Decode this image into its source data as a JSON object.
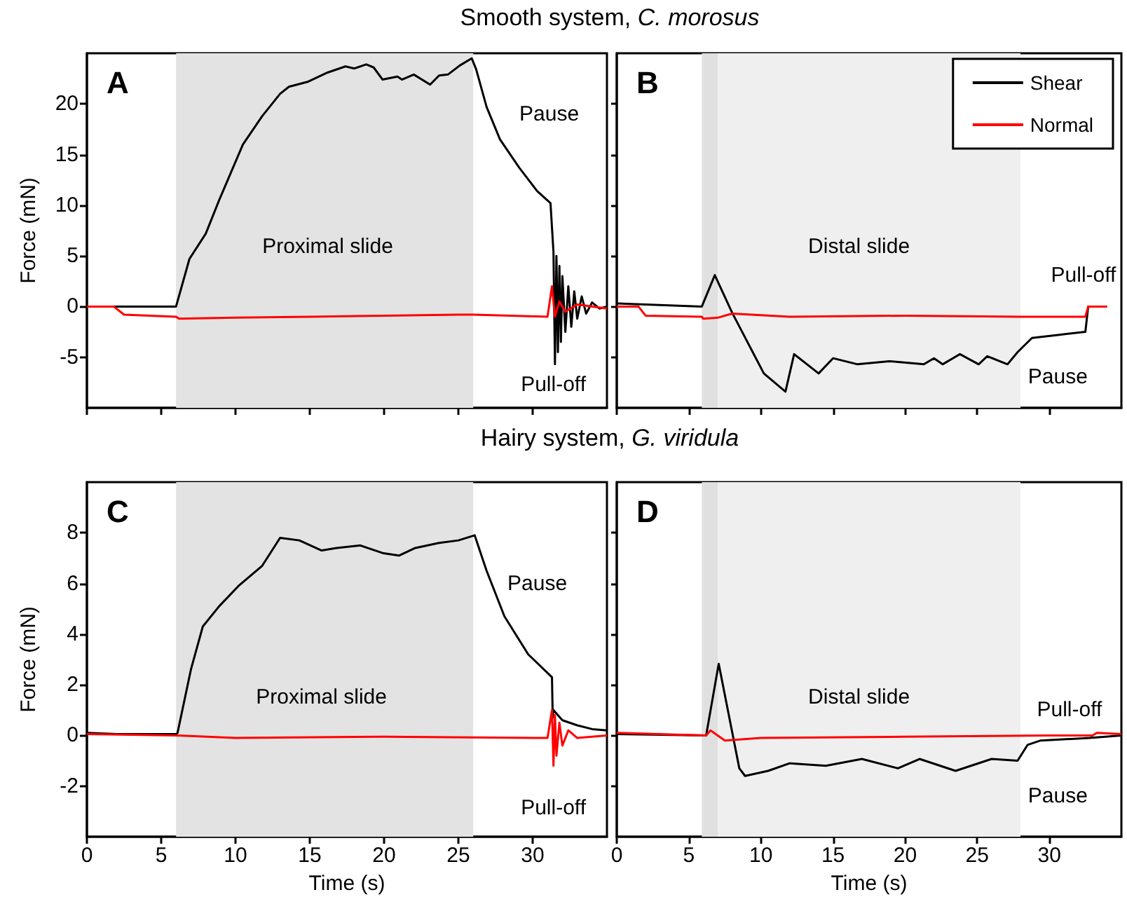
{
  "chart_data": [
    {
      "type": "line",
      "title": "Smooth system, C. morosus",
      "ylabel": "Force (mN)",
      "xlim": [
        0,
        35
      ],
      "xticks": [
        0,
        5,
        10,
        15,
        20,
        25,
        30
      ],
      "ylim": [
        -10,
        25
      ],
      "yticks": [
        -5,
        0,
        5,
        10,
        15,
        20
      ],
      "tick_labels": "y",
      "legend": false,
      "grid": false,
      "series": [
        {
          "color": "#000000",
          "x": [
            0,
            6,
            6.9,
            8,
            8.9,
            10.5,
            11.8,
            13,
            13.6,
            14.9,
            16.2,
            17.4,
            18,
            18.8,
            19.3,
            19.9,
            20.9,
            21.2,
            22,
            23.1,
            23.7,
            24.3,
            25.1,
            25.9,
            26.2,
            26.9,
            27.8,
            29.1,
            30.3,
            31.2,
            31.4,
            31.5,
            31.6,
            31.7,
            31.8,
            31.9,
            32,
            32.2,
            32.4,
            32.6,
            32.8,
            33,
            33.3,
            33.6,
            34,
            34.5,
            35
          ],
          "values": [
            0,
            0,
            4.7,
            7.2,
            10.5,
            16,
            18.8,
            21,
            21.7,
            22.2,
            23.1,
            23.7,
            23.5,
            23.9,
            23.6,
            22.4,
            22.7,
            22.4,
            22.9,
            21.9,
            22.8,
            22.9,
            23.8,
            24.5,
            23.4,
            19.7,
            16.5,
            13.7,
            11.4,
            10.2,
            5.4,
            -5.7,
            5,
            -4.5,
            4,
            -3.5,
            3,
            -2.5,
            2,
            -2,
            1.5,
            -1.2,
            1,
            -0.7,
            0.4,
            -0.2,
            0
          ]
        },
        {
          "color": "#ff0000",
          "x": [
            0,
            1.8,
            2.5,
            6,
            6.2,
            10,
            15,
            20,
            25,
            26,
            31,
            31.3,
            31.5,
            31.8,
            32.2,
            33,
            35
          ],
          "values": [
            0,
            0,
            -0.8,
            -1,
            -1.2,
            -1.1,
            -1,
            -0.9,
            -0.8,
            -0.8,
            -1,
            2,
            -1,
            0.5,
            -0.5,
            0.2,
            -0.2
          ]
        }
      ],
      "bands": [
        {
          "axis": "x",
          "from": 6,
          "to": 26,
          "color": "#e3e3e3"
        }
      ],
      "annotations": [
        "A",
        "Proximal slide",
        "Pause",
        "Pull-off"
      ]
    },
    {
      "type": "line",
      "xlim": [
        0,
        35
      ],
      "xticks": [
        0,
        5,
        10,
        15,
        20,
        25,
        30
      ],
      "ylim": [
        -10,
        25
      ],
      "yticks": [
        -5,
        0,
        5,
        10,
        15,
        20
      ],
      "tick_labels": false,
      "legend": "top right",
      "grid": false,
      "series": [
        {
          "name": "Shear",
          "color": "#000000",
          "x": [
            0,
            5.9,
            6.8,
            8,
            10.2,
            11.7,
            12.3,
            14,
            15,
            16.7,
            18.9,
            21.3,
            22,
            22.6,
            23.8,
            25.1,
            25.7,
            27.1,
            27.8,
            28.8,
            30.6,
            32.5,
            32.7,
            34
          ],
          "values": [
            0.3,
            0,
            3.1,
            -0.6,
            -6.6,
            -8.4,
            -4.7,
            -6.6,
            -5.1,
            -5.7,
            -5.4,
            -5.7,
            -5.1,
            -5.7,
            -4.7,
            -5.7,
            -4.9,
            -5.7,
            -4.5,
            -3.1,
            -2.8,
            -2.5,
            0,
            0
          ]
        },
        {
          "name": "Normal",
          "color": "#ff0000",
          "x": [
            0,
            1.5,
            2,
            5.9,
            6,
            7,
            8,
            12,
            20,
            28,
            32.5,
            32.7,
            34
          ],
          "values": [
            0,
            0,
            -0.9,
            -1,
            -1.2,
            -1.1,
            -0.7,
            -1,
            -0.9,
            -1,
            -1,
            0,
            0
          ]
        }
      ],
      "bands": [
        {
          "axis": "x",
          "from": 5.9,
          "to": 7,
          "color": "#e0e0e0"
        },
        {
          "axis": "x",
          "from": 7,
          "to": 28,
          "color": "#efefef"
        }
      ],
      "annotations": [
        "B",
        "Distal slide",
        "Pull-off",
        "Pause"
      ]
    },
    {
      "type": "line",
      "title": "Hairy system, G. viridula",
      "xlabel": "Time (s)",
      "ylabel": "Force (mN)",
      "xlim": [
        0,
        35
      ],
      "xticks": [
        0,
        5,
        10,
        15,
        20,
        25,
        30
      ],
      "ylim": [
        -4,
        10
      ],
      "yticks": [
        -2,
        0,
        2,
        4,
        6,
        8
      ],
      "legend": false,
      "grid": false,
      "series": [
        {
          "color": "#000000",
          "x": [
            0,
            2,
            6,
            6.1,
            7,
            7.8,
            8.9,
            10.2,
            11.8,
            13,
            14.3,
            15.8,
            16.8,
            18.4,
            19.9,
            21,
            22.1,
            23.7,
            25,
            26.1,
            26.9,
            28.1,
            29.7,
            31.3,
            31.35,
            31.4,
            32,
            33,
            34,
            35
          ],
          "values": [
            0.1,
            0.05,
            0.05,
            0.1,
            2.6,
            4.3,
            5.1,
            5.9,
            6.7,
            7.8,
            7.7,
            7.3,
            7.4,
            7.5,
            7.2,
            7.1,
            7.4,
            7.6,
            7.7,
            7.9,
            6.5,
            4.7,
            3.2,
            2.3,
            0.7,
            1,
            0.6,
            0.4,
            0.25,
            0.2
          ]
        },
        {
          "color": "#ff0000",
          "x": [
            0,
            6,
            10,
            20,
            31,
            31.3,
            31.4,
            31.5,
            31.6,
            31.8,
            32,
            32.4,
            33,
            35
          ],
          "values": [
            0.05,
            0,
            -0.1,
            -0.05,
            -0.1,
            1,
            -1.2,
            0.8,
            -0.8,
            0.5,
            -0.4,
            0.2,
            -0.1,
            0
          ]
        }
      ],
      "bands": [
        {
          "axis": "x",
          "from": 6,
          "to": 26,
          "color": "#e3e3e3"
        }
      ],
      "annotations": [
        "C",
        "Proximal slide",
        "Pause",
        "Pull-off"
      ]
    },
    {
      "type": "line",
      "xlabel": "Time (s)",
      "xlim": [
        0,
        35
      ],
      "xticks": [
        0,
        5,
        10,
        15,
        20,
        25,
        30
      ],
      "ylim": [
        -4,
        10
      ],
      "yticks": [
        -2,
        0,
        2,
        4,
        6,
        8
      ],
      "tick_labels": "x",
      "legend": false,
      "grid": false,
      "series": [
        {
          "color": "#000000",
          "x": [
            0,
            6.2,
            7.07,
            8.5,
            8.9,
            10.5,
            12,
            14.5,
            17,
            19.5,
            21,
            23.5,
            26,
            27.8,
            28.5,
            29.4,
            32.8,
            35
          ],
          "values": [
            0.05,
            0,
            2.83,
            -1.3,
            -1.6,
            -1.4,
            -1.1,
            -1.2,
            -0.93,
            -1.3,
            -0.93,
            -1.4,
            -0.93,
            -1,
            -0.37,
            -0.2,
            -0.1,
            0
          ]
        },
        {
          "color": "#ff0000",
          "x": [
            0,
            6.2,
            6.5,
            7.5,
            10,
            20,
            30,
            33,
            33.3,
            35
          ],
          "values": [
            0.1,
            0,
            0.2,
            -0.2,
            -0.1,
            -0.05,
            0,
            0,
            0.1,
            0.05
          ]
        }
      ],
      "bands": [
        {
          "axis": "x",
          "from": 5.9,
          "to": 7,
          "color": "#e0e0e0"
        },
        {
          "axis": "x",
          "from": 7,
          "to": 28,
          "color": "#efefef"
        }
      ],
      "annotations": [
        "D",
        "Distal slide",
        "Pull-off",
        "Pause"
      ]
    }
  ]
}
